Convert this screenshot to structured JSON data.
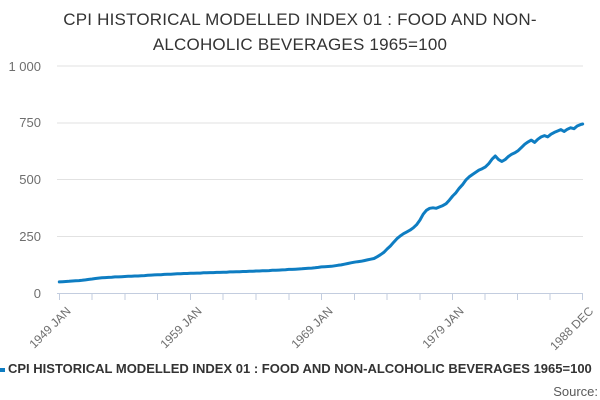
{
  "title": "CPI HISTORICAL MODELLED INDEX 01 : FOOD AND NON-ALCOHOLIC BEVERAGES 1965=100",
  "legend": {
    "label": "CPI HISTORICAL MODELLED INDEX 01 : FOOD AND NON-ALCOHOLIC BEVERAGES 1965=100"
  },
  "source_label": "Source:",
  "colors": {
    "line": "#0e7dc2",
    "grid": "#e2e2e2",
    "axis": "#c3cddf",
    "title_text": "#333333",
    "tick_text": "#6e6e6e",
    "legend_text": "#333333",
    "source_text": "#5a5a5a"
  },
  "chart_data": {
    "type": "line",
    "title": "CPI HISTORICAL MODELLED INDEX 01 : FOOD AND NON-ALCOHOLIC BEVERAGES 1965=100",
    "xlabel": "",
    "ylabel": "",
    "grid": "horizontal",
    "legend_position": "bottom-left",
    "x_axis": {
      "range": [
        1949.0,
        1988.917
      ],
      "tick_values": [
        1949.0,
        1959.0,
        1969.0,
        1979.0,
        1988.917
      ],
      "tick_labels": [
        "1949 JAN",
        "1959 JAN",
        "1969 JAN",
        "1979 JAN",
        "1988 DEC"
      ],
      "minor_divisions_per_interval": 4
    },
    "y_axis": {
      "range": [
        0,
        1000
      ],
      "tick_values": [
        0,
        250,
        500,
        750,
        1000
      ],
      "tick_labels": [
        "0",
        "250",
        "500",
        "750",
        "1 000"
      ]
    },
    "series": [
      {
        "name": "CPI HISTORICAL MODELLED INDEX 01 : FOOD AND NON-ALCOHOLIC BEVERAGES 1965=100",
        "color": "#0e7dc2",
        "x_unit": "decimal_year",
        "x_start": 1949.0,
        "x_step": 0.25,
        "values": [
          50,
          51,
          52,
          53,
          54,
          55,
          56,
          57,
          59,
          61,
          63,
          65,
          67,
          68,
          69,
          70,
          71,
          72,
          72,
          73,
          74,
          75,
          75,
          76,
          76,
          77,
          78,
          79,
          80,
          81,
          82,
          82,
          83,
          84,
          84,
          85,
          86,
          86,
          87,
          87,
          88,
          88,
          89,
          89,
          90,
          90,
          91,
          91,
          92,
          92,
          93,
          93,
          94,
          94,
          95,
          95,
          96,
          96,
          97,
          97,
          98,
          98,
          99,
          99,
          100,
          101,
          101,
          102,
          103,
          104,
          105,
          105,
          106,
          107,
          108,
          109,
          110,
          111,
          112,
          114,
          116,
          117,
          118,
          119,
          121,
          123,
          125,
          128,
          131,
          134,
          137,
          139,
          141,
          144,
          147,
          150,
          153,
          161,
          170,
          180,
          195,
          208,
          225,
          240,
          252,
          262,
          270,
          278,
          288,
          302,
          322,
          348,
          365,
          374,
          376,
          374,
          380,
          386,
          394,
          410,
          428,
          442,
          462,
          478,
          498,
          512,
          522,
          532,
          542,
          548,
          556,
          570,
          590,
          604,
          588,
          580,
          588,
          602,
          612,
          618,
          628,
          642,
          656,
          666,
          674,
          664,
          678,
          688,
          694,
          688,
          700,
          708,
          714,
          720,
          712,
          722,
          728,
          724,
          736,
          742
        ],
        "end_point": [
          1988.92,
          745
        ]
      }
    ]
  }
}
